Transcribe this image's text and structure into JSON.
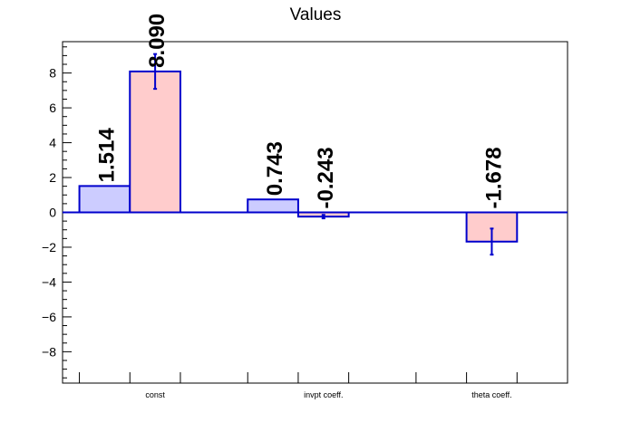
{
  "chart_data": {
    "type": "bar",
    "title": "Values",
    "categories": [
      "const",
      "invpt coeff.",
      "theta coeff."
    ],
    "series": [
      {
        "values": [
          1.514,
          0.743,
          null
        ],
        "errors": [
          null,
          null,
          null
        ],
        "labels": [
          "1.514",
          "0.743",
          ""
        ],
        "fill": "#ccccff",
        "stroke": "#0000cc"
      },
      {
        "values": [
          8.09,
          -0.243,
          -1.678
        ],
        "errors": [
          1.0,
          0.1,
          0.75
        ],
        "labels": [
          "8.090",
          "-0.243",
          "-1.678"
        ],
        "fill": "#ffcccc",
        "stroke": "#0000cc"
      }
    ],
    "y_ticks": [
      -8,
      -6,
      -4,
      -2,
      0,
      2,
      4,
      6,
      8
    ],
    "y_tick_labels": [
      "−8",
      "−6",
      "−4",
      "−2",
      "0",
      "2",
      "4",
      "6",
      "8"
    ],
    "ylim": [
      -9.8,
      9.8
    ],
    "grid": false,
    "legend": "none",
    "colors": {
      "frame": "#000000",
      "zero_line": "#0000cc",
      "error_bar": "#0000cc",
      "label": "#000000"
    }
  }
}
